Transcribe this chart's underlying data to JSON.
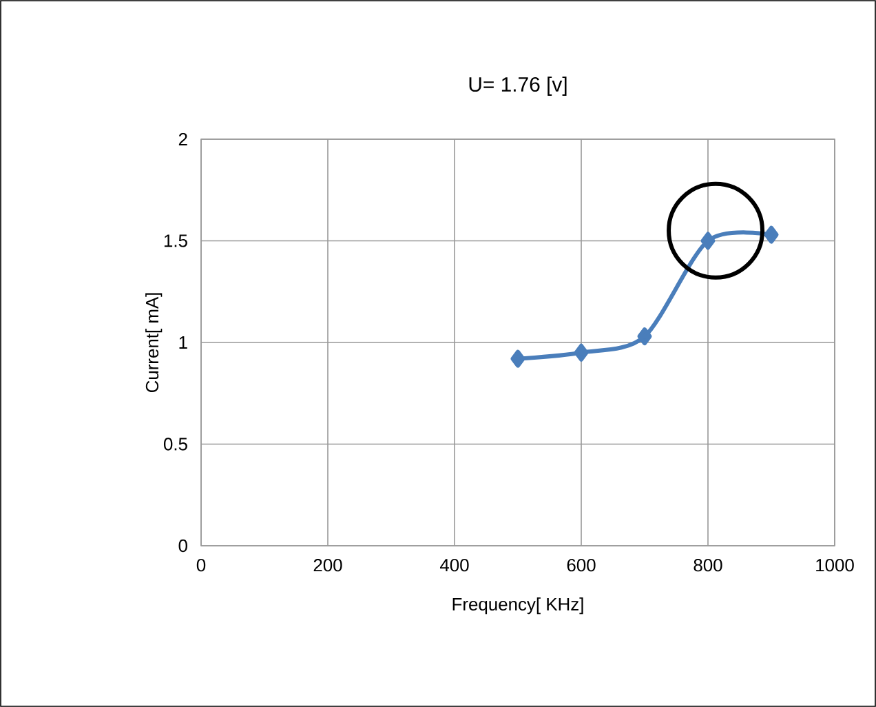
{
  "chart_data": {
    "type": "line",
    "title": "U= 1.76 [v]",
    "xlabel": "Frequency[ KHz]",
    "ylabel": "Current[ mA]",
    "x": [
      500,
      600,
      700,
      800,
      900
    ],
    "series": [
      {
        "color": "#4a7ebb",
        "values": [
          0.92,
          0.95,
          1.03,
          1.5,
          1.53
        ]
      }
    ],
    "xlim": [
      0,
      1000
    ],
    "xticks": [
      0,
      200,
      400,
      600,
      800,
      1000
    ],
    "ylim": [
      0,
      2
    ],
    "yticks": [
      0,
      0.5,
      1,
      1.5,
      2
    ],
    "grid": true,
    "marker": "diamond",
    "line_style": "solid"
  }
}
